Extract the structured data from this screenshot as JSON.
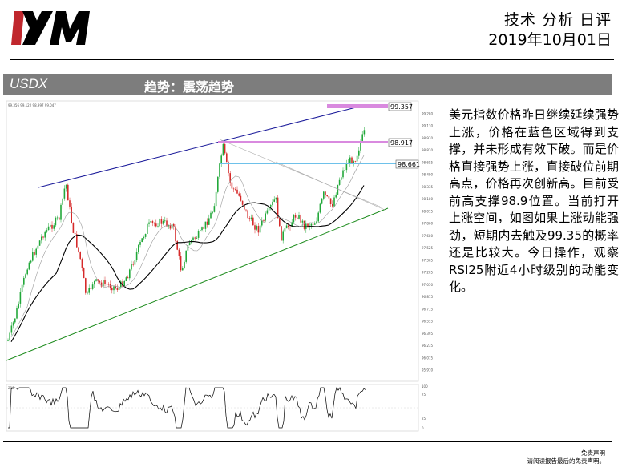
{
  "header": {
    "title": "技术 分析 日评",
    "date": "2019年10月01日",
    "logo_colors": {
      "x": "#c0272d",
      "m": "#000000"
    }
  },
  "band": {
    "symbol": "USDX",
    "trend": "趋势：震荡趋势",
    "background": "#7d7d7d"
  },
  "chart": {
    "info_text": "99.356 99.122 98.997 99.047",
    "y_ticks": [
      "99.280",
      "99.130",
      "98.970",
      "98.810",
      "98.655",
      "98.490",
      "98.335",
      "98.180",
      "98.015",
      "97.860",
      "97.680",
      "97.525",
      "97.365",
      "97.205",
      "97.050",
      "96.875",
      "96.715",
      "96.555",
      "96.395",
      "96.235",
      "96.075",
      "95.910"
    ],
    "price_tags": [
      {
        "value": "99.357",
        "color": "#d98adf"
      },
      {
        "value": "98.917",
        "color": "#d98adf"
      },
      {
        "value": "98.661",
        "color": "#6ec1ea"
      }
    ],
    "rsi_ticks": [
      "100",
      "75",
      "25",
      "0"
    ],
    "rsi_top_label": "200"
  },
  "commentary": "美元指数价格昨日继续延续强势上涨，价格在蓝色区域得到支撑，并未形成有效下破。而是价格直接强势上涨，直接破位前期高点，价格再次创新高。目前受前高支撑98.9位置。当前打开上涨空间，如图如果上涨动能强劲，短期内去触及99.35的概率还是比较大。今日操作，观察RSI25附近4小时级别的动能变化。",
  "disclaimer": {
    "line1": "免责声明",
    "line2": "请阅读报告最后的免责声明。"
  }
}
